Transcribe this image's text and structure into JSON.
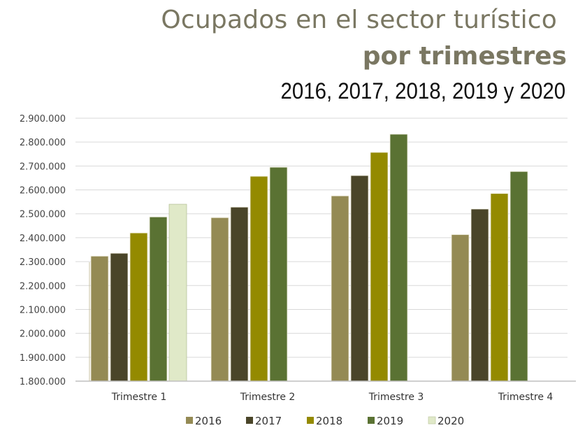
{
  "chart_data": {
    "type": "bar",
    "title": "Ocupados en el sector turístico",
    "subtitle": "por trimestres",
    "subtitle2": "2016, 2017, 2018, 2019 y 2020",
    "xlabel": "",
    "ylabel": "",
    "ylim": [
      1800000,
      2900000
    ],
    "yticks": [
      1800000,
      1900000,
      2000000,
      2100000,
      2200000,
      2300000,
      2400000,
      2500000,
      2600000,
      2700000,
      2800000,
      2900000
    ],
    "ytick_labels": [
      "1.800.000",
      "1.900.000",
      "2.000.000",
      "2.100.000",
      "2.200.000",
      "2.300.000",
      "2.400.000",
      "2.500.000",
      "2.600.000",
      "2.700.000",
      "2.800.000",
      "2.900.000"
    ],
    "grid": true,
    "legend_position": "bottom",
    "categories": [
      "Trimestre 1",
      "Trimestre 2",
      "Trimestre 3",
      "Trimestre 4"
    ],
    "series": [
      {
        "name": "2016",
        "color": "#948a54",
        "values": [
          2323000,
          2484000,
          2575000,
          2413000
        ]
      },
      {
        "name": "2017",
        "color": "#4a4529",
        "values": [
          2335000,
          2528000,
          2660000,
          2520000
        ]
      },
      {
        "name": "2018",
        "color": "#948a00",
        "values": [
          2420000,
          2657000,
          2757000,
          2585000
        ]
      },
      {
        "name": "2019",
        "color": "#5a7233",
        "values": [
          2487000,
          2695000,
          2833000,
          2677000
        ]
      },
      {
        "name": "2020",
        "color": "#e0e9c8",
        "values": [
          2540000,
          null,
          null,
          null
        ]
      }
    ]
  }
}
